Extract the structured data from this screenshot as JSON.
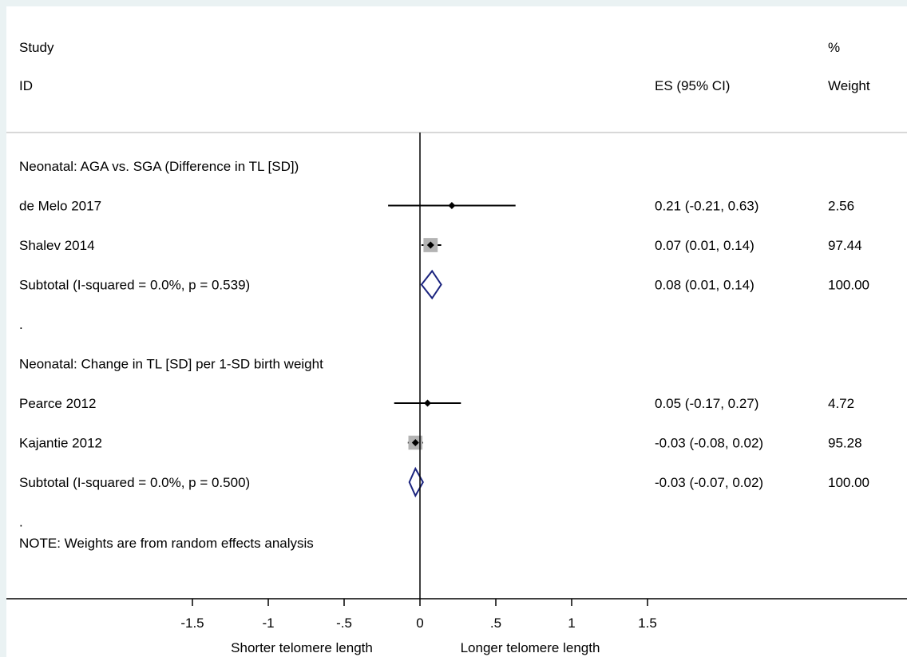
{
  "chart_data": {
    "type": "forest",
    "headers": {
      "study_line1": "Study",
      "study_line2": "ID",
      "es": "ES (95% CI)",
      "weight_line1": "%",
      "weight_line2": "Weight"
    },
    "rows": [
      {
        "kind": "group",
        "label": "Neonatal: AGA vs. SGA (Difference in TL [SD])"
      },
      {
        "kind": "study",
        "label": "de Melo 2017",
        "es": 0.21,
        "lo": -0.21,
        "hi": 0.63,
        "es_text": "0.21 (-0.21, 0.63)",
        "weight": 2.56,
        "weight_text": "2.56"
      },
      {
        "kind": "study",
        "label": "Shalev 2014",
        "es": 0.07,
        "lo": 0.01,
        "hi": 0.14,
        "es_text": "0.07 (0.01, 0.14)",
        "weight": 97.44,
        "weight_text": "97.44"
      },
      {
        "kind": "subtotal",
        "label": "Subtotal  (I-squared = 0.0%, p = 0.539)",
        "es": 0.08,
        "lo": 0.01,
        "hi": 0.14,
        "es_text": "0.08 (0.01, 0.14)",
        "weight_text": "100.00"
      },
      {
        "kind": "spacer",
        "label": "."
      },
      {
        "kind": "group",
        "label": "Neonatal: Change in TL [SD] per 1-SD birth weight"
      },
      {
        "kind": "study",
        "label": "Pearce 2012",
        "es": 0.05,
        "lo": -0.17,
        "hi": 0.27,
        "es_text": "0.05 (-0.17, 0.27)",
        "weight": 4.72,
        "weight_text": "4.72"
      },
      {
        "kind": "study",
        "label": "Kajantie 2012",
        "es": -0.03,
        "lo": -0.08,
        "hi": 0.02,
        "es_text": "-0.03 (-0.08, 0.02)",
        "weight": 95.28,
        "weight_text": "95.28"
      },
      {
        "kind": "subtotal",
        "label": "Subtotal  (I-squared = 0.0%, p = 0.500)",
        "es": -0.03,
        "lo": -0.07,
        "hi": 0.02,
        "es_text": "-0.03 (-0.07, 0.02)",
        "weight_text": "100.00"
      },
      {
        "kind": "spacer",
        "label": "."
      }
    ],
    "note": "NOTE: Weights are from random effects analysis",
    "x_ticks": [
      -1.5,
      -1,
      -0.5,
      0,
      0.5,
      1,
      1.5
    ],
    "x_tick_labels": [
      "-1.5",
      "-1",
      "-.5",
      "0",
      ".5",
      "1",
      "1.5"
    ],
    "xlim": [
      -1.5,
      1.5
    ],
    "null_line": 0,
    "xlabel_left": "Shorter telomere length",
    "xlabel_right": "Longer telomere length",
    "colors": {
      "background": "#eaf2f3",
      "panel": "#ffffff",
      "diamond": "#1a237e",
      "weight_box": "#b3b3b3",
      "line": "#000000",
      "divider": "#b0b0b0"
    }
  }
}
